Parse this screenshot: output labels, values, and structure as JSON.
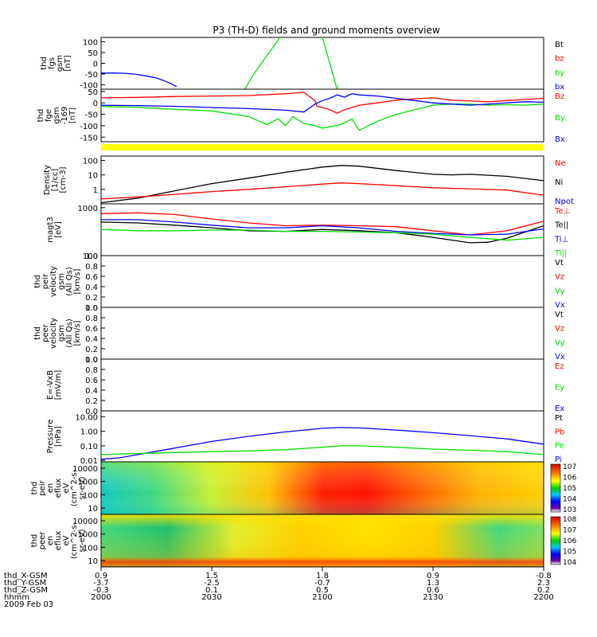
{
  "title": "P3 (TH-D) fields and ground moments overview",
  "time_axis": {
    "tick_labels": [
      "2000",
      "2030",
      "2100",
      "2130",
      "2200"
    ],
    "x_range": [
      "20:00",
      "22:00"
    ],
    "date_label": "2009 Feb 03"
  },
  "ephemeris": {
    "rows": [
      {
        "label": "thd_X-GSM",
        "values": [
          "0.9",
          "1.5",
          "1.8",
          "0.9",
          "-0.8"
        ]
      },
      {
        "label": "thd_Y-GSM",
        "values": [
          "-3.7",
          "-2.5",
          "-0.7",
          "1.3",
          "2.3"
        ]
      },
      {
        "label": "thd_Z-GSM",
        "values": [
          "-0.3",
          "0.1",
          "0.5",
          "0.6",
          "0.2"
        ]
      },
      {
        "label": "hhmm",
        "values": [
          "2000",
          "2030",
          "2100",
          "2130",
          "2200"
        ]
      }
    ]
  },
  "colors": {
    "black": "#000000",
    "red": "#ff0000",
    "green": "#00e000",
    "blue": "#0000ff",
    "yellow": "#ffff00"
  },
  "chart_data": [
    {
      "id": "fgs",
      "type": "line",
      "ylabel": [
        "thd",
        "fgs",
        "gsm",
        "[nT]"
      ],
      "yticks": [
        "100",
        "50",
        "0",
        "-50",
        "-100"
      ],
      "ylim": [
        -120,
        120
      ],
      "legend": [
        {
          "name": "Bt",
          "color": "black"
        },
        {
          "name": "bz",
          "color": "red"
        },
        {
          "name": "by",
          "color": "green"
        },
        {
          "name": "bx",
          "color": "blue"
        }
      ],
      "series": [
        {
          "name": "bx",
          "color": "blue",
          "x": [
            0,
            3,
            6,
            9,
            12,
            15,
            17,
            19,
            20.5
          ],
          "y": [
            -45,
            -45,
            -46,
            -50,
            -58,
            -68,
            -80,
            -95,
            -108
          ]
        },
        {
          "name": "by",
          "color": "green",
          "x": [
            39,
            41,
            43,
            46,
            48.5
          ],
          "y": [
            -120,
            -60,
            -10,
            60,
            120
          ]
        },
        {
          "name": "by",
          "color": "green",
          "x": [
            60,
            61,
            62,
            63,
            64
          ],
          "y": [
            120,
            60,
            0,
            -60,
            -120
          ]
        }
      ]
    },
    {
      "id": "fge",
      "type": "line",
      "ylabel": [
        "thd",
        "fge",
        "gsm",
        "-169",
        "[nT]"
      ],
      "yticks": [
        "50",
        "0",
        "-50",
        "-100",
        "-150"
      ],
      "ylim": [
        -170,
        60
      ],
      "legend": [
        {
          "name": "Bz",
          "color": "red"
        },
        {
          "name": "By",
          "color": "green"
        },
        {
          "name": "Bx",
          "color": "blue"
        }
      ],
      "series": [
        {
          "name": "Bz",
          "color": "red",
          "x": [
            0,
            10,
            20,
            30,
            40,
            50,
            55,
            58,
            58.5,
            60,
            62,
            64,
            66,
            70,
            75,
            80,
            85,
            90,
            95,
            100,
            105,
            110,
            115,
            120
          ],
          "y": [
            22,
            24,
            28,
            30,
            32,
            40,
            46,
            10,
            -15,
            -20,
            -30,
            -45,
            -30,
            -10,
            0,
            12,
            18,
            22,
            12,
            8,
            5,
            10,
            15,
            20
          ]
        },
        {
          "name": "By",
          "color": "green",
          "x": [
            0,
            10,
            20,
            30,
            40,
            45,
            48,
            50,
            52,
            55,
            58,
            60,
            62,
            65,
            68,
            70,
            75,
            80,
            85,
            90,
            95,
            100,
            105,
            110,
            115,
            120
          ],
          "y": [
            -15,
            -20,
            -28,
            -35,
            -60,
            -95,
            -70,
            -100,
            -60,
            -90,
            -100,
            -110,
            -105,
            -95,
            -70,
            -120,
            -80,
            -50,
            -30,
            -10,
            -5,
            -5,
            -10,
            -8,
            -10,
            -5
          ]
        },
        {
          "name": "Bx",
          "color": "blue",
          "x": [
            0,
            10,
            20,
            30,
            40,
            50,
            55,
            58,
            60,
            62,
            64,
            66,
            68,
            70,
            75,
            80,
            85,
            90,
            95,
            100,
            105,
            110,
            115,
            120
          ],
          "y": [
            -10,
            -12,
            -15,
            -20,
            -25,
            -32,
            -40,
            -5,
            10,
            20,
            35,
            25,
            40,
            35,
            30,
            20,
            10,
            0,
            -5,
            -10,
            -5,
            0,
            5,
            3
          ]
        }
      ]
    },
    {
      "id": "density",
      "type": "line",
      "scale": "log",
      "ylabel": [
        "Density",
        "[1/cc]",
        "[cm-3]"
      ],
      "yticks": [
        "100",
        "10",
        "1"
      ],
      "ylim": [
        0.1,
        200
      ],
      "legend": [
        {
          "name": "Ne",
          "color": "red"
        },
        {
          "name": "Ni",
          "color": "black"
        },
        {
          "name": "Npot",
          "color": "blue"
        }
      ],
      "series": [
        {
          "name": "Ni",
          "color": "black",
          "x": [
            0,
            10,
            20,
            30,
            40,
            50,
            60,
            65,
            70,
            80,
            90,
            95,
            100,
            110,
            120
          ],
          "y": [
            0.12,
            0.25,
            0.8,
            2.5,
            6,
            15,
            35,
            45,
            40,
            20,
            11,
            10,
            11,
            8,
            4
          ]
        },
        {
          "name": "Ne",
          "color": "red",
          "x": [
            0,
            10,
            20,
            30,
            40,
            50,
            60,
            65,
            70,
            80,
            90,
            100,
            110,
            120
          ],
          "y": [
            0.22,
            0.3,
            0.45,
            0.7,
            1.0,
            1.5,
            2.3,
            2.8,
            2.5,
            1.8,
            1.3,
            1.1,
            0.9,
            0.4
          ]
        }
      ]
    },
    {
      "id": "temperature",
      "type": "line",
      "scale": "log",
      "ylabel": [
        "magt3",
        "[eV]"
      ],
      "yticks": [
        "1000",
        "100"
      ],
      "ylim": [
        100,
        1200
      ],
      "legend": [
        {
          "name": "Te⊥",
          "color": "red"
        },
        {
          "name": "Te||",
          "color": "black"
        },
        {
          "name": "Ti⊥",
          "color": "blue"
        },
        {
          "name": "Ti||",
          "color": "green"
        }
      ],
      "series": [
        {
          "name": "Te⊥",
          "color": "red",
          "x": [
            0,
            10,
            20,
            30,
            40,
            50,
            60,
            70,
            80,
            90,
            100,
            110,
            120
          ],
          "y": [
            750,
            780,
            720,
            580,
            480,
            420,
            430,
            420,
            400,
            330,
            270,
            330,
            520
          ]
        },
        {
          "name": "Te||",
          "color": "black",
          "x": [
            0,
            10,
            20,
            30,
            40,
            50,
            60,
            70,
            80,
            90,
            100,
            105,
            110,
            120
          ],
          "y": [
            500,
            480,
            430,
            380,
            330,
            320,
            350,
            330,
            300,
            240,
            185,
            190,
            230,
            420
          ]
        },
        {
          "name": "Ti⊥",
          "color": "blue",
          "x": [
            0,
            10,
            20,
            30,
            40,
            50,
            60,
            70,
            80,
            90,
            100,
            110,
            120
          ],
          "y": [
            560,
            560,
            500,
            430,
            380,
            380,
            420,
            380,
            320,
            290,
            270,
            280,
            360
          ]
        },
        {
          "name": "Ti||",
          "color": "green",
          "x": [
            0,
            10,
            20,
            30,
            40,
            50,
            60,
            70,
            80,
            90,
            100,
            110,
            120
          ],
          "y": [
            350,
            330,
            330,
            340,
            340,
            320,
            320,
            310,
            300,
            280,
            240,
            210,
            240
          ]
        }
      ]
    },
    {
      "id": "peir_velocity",
      "type": "line",
      "ylabel": [
        "thd",
        "peir",
        "velocity",
        "gsm",
        "(All Qs)",
        "[km/s]"
      ],
      "yticks": [
        "1.0",
        "0.8",
        "0.6",
        "0.4",
        "0.2",
        "0.0"
      ],
      "ylim": [
        0,
        1
      ],
      "legend": [
        {
          "name": "Vt",
          "color": "black"
        },
        {
          "name": "Vz",
          "color": "red"
        },
        {
          "name": "Vy",
          "color": "green"
        },
        {
          "name": "Vx",
          "color": "blue"
        }
      ],
      "series": []
    },
    {
      "id": "peer_velocity",
      "type": "line",
      "ylabel": [
        "thd",
        "peer",
        "velocity",
        "gsm",
        "(All Qs)",
        "[km/s]"
      ],
      "yticks": [
        "1.0",
        "0.8",
        "0.6",
        "0.4",
        "0.2",
        "0.0"
      ],
      "ylim": [
        0,
        1
      ],
      "legend": [
        {
          "name": "Vt",
          "color": "black"
        },
        {
          "name": "Vz",
          "color": "red"
        },
        {
          "name": "Vy",
          "color": "green"
        },
        {
          "name": "Vx",
          "color": "blue"
        }
      ],
      "series": []
    },
    {
      "id": "efield",
      "type": "line",
      "ylabel": [
        "E=-VxB",
        "[mV/m]"
      ],
      "yticks": [
        "1.0",
        "0.8",
        "0.6",
        "0.4",
        "0.2",
        "0.0"
      ],
      "ylim": [
        0,
        1
      ],
      "legend": [
        {
          "name": "Ez",
          "color": "red"
        },
        {
          "name": "Ey",
          "color": "green"
        },
        {
          "name": "Ex",
          "color": "blue"
        }
      ],
      "series": []
    },
    {
      "id": "pressure",
      "type": "line",
      "scale": "log",
      "ylabel": [
        "Pressure",
        "[nPa]"
      ],
      "yticks": [
        "10.00",
        "1.00",
        "0.10",
        "0.01"
      ],
      "ylim": [
        0.008,
        25
      ],
      "legend": [
        {
          "name": "Pt",
          "color": "black"
        },
        {
          "name": "Pb",
          "color": "red"
        },
        {
          "name": "Pe",
          "color": "green"
        },
        {
          "name": "Pi",
          "color": "blue"
        }
      ],
      "series": [
        {
          "name": "Pi",
          "color": "blue",
          "x": [
            0,
            5,
            10,
            20,
            30,
            40,
            50,
            60,
            65,
            70,
            80,
            90,
            100,
            110,
            120
          ],
          "y": [
            0.012,
            0.015,
            0.025,
            0.07,
            0.2,
            0.45,
            0.9,
            1.6,
            1.8,
            1.7,
            1.2,
            0.8,
            0.5,
            0.3,
            0.13
          ]
        },
        {
          "name": "Pe",
          "color": "green",
          "x": [
            0,
            10,
            20,
            30,
            40,
            50,
            60,
            65,
            70,
            80,
            90,
            100,
            110,
            120
          ],
          "y": [
            0.025,
            0.03,
            0.035,
            0.04,
            0.045,
            0.055,
            0.08,
            0.1,
            0.1,
            0.08,
            0.06,
            0.05,
            0.04,
            0.025
          ]
        }
      ]
    },
    {
      "id": "peir_spectrogram",
      "type": "heatmap",
      "scale": "log",
      "ylabel": [
        "thd",
        "peir",
        "en",
        "eflux",
        "eV",
        "(cm^2-s-",
        "sr-eV)"
      ],
      "yticks": [
        "10000",
        "1000",
        "100",
        "10"
      ],
      "colorbar_ticks": [
        "10^7",
        "10^6",
        "10^5",
        "10^4",
        "10^3"
      ],
      "description_z": "ion energy flux, peak near 21:00-21:15 above 100 eV"
    },
    {
      "id": "peer_spectrogram",
      "type": "heatmap",
      "scale": "log",
      "ylabel": [
        "thd",
        "peer",
        "en",
        "eflux",
        "eV",
        "(cm^2-s-",
        "sr-eV)"
      ],
      "yticks": [
        "10000",
        "1000",
        "100",
        "10"
      ],
      "colorbar_ticks": [
        "10^8",
        "10^7",
        "10^6",
        "10^5",
        "10^4"
      ]
    }
  ]
}
